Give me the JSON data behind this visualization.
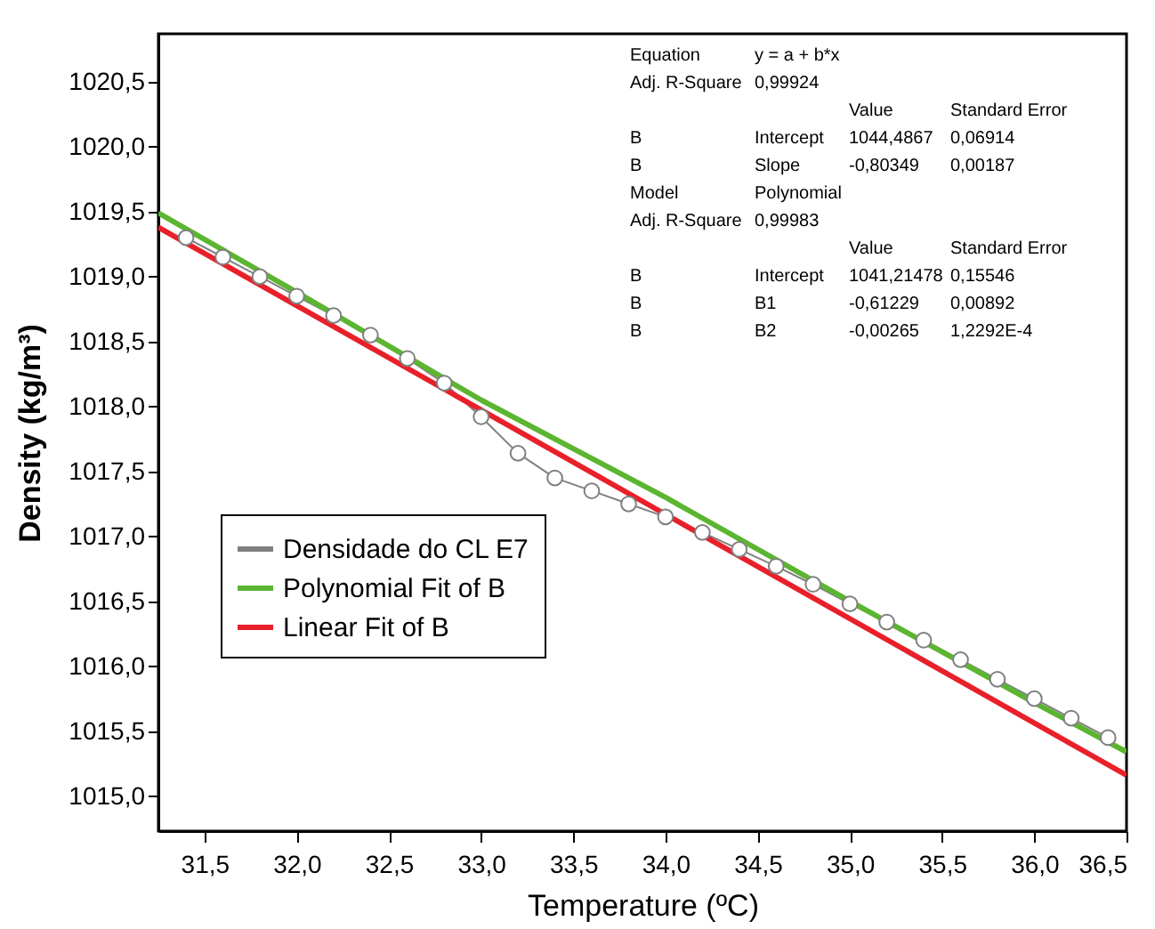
{
  "chart_data": {
    "type": "line",
    "xlabel": "Temperature (ºC)",
    "ylabel": "Density (kg/m³)",
    "xlim": [
      31.25,
      36.5
    ],
    "xticks": [
      {
        "value": 31.5,
        "label": "31,5"
      },
      {
        "value": 32.0,
        "label": "32,0"
      },
      {
        "value": 32.5,
        "label": "32,5"
      },
      {
        "value": 33.0,
        "label": "33,0"
      },
      {
        "value": 33.5,
        "label": "33,5"
      },
      {
        "value": 34.0,
        "label": "34,0"
      },
      {
        "value": 34.5,
        "label": "34,5"
      },
      {
        "value": 35.0,
        "label": "35,0"
      },
      {
        "value": 35.5,
        "label": "35,5"
      },
      {
        "value": 36.0,
        "label": "36,0"
      },
      {
        "value": 36.5,
        "label": "36,5"
      }
    ],
    "ylim": [
      1014.73,
      1020.87
    ],
    "yticks": [
      {
        "value": 1015.0,
        "label": "1015,0"
      },
      {
        "value": 1015.5,
        "label": "1015,5"
      },
      {
        "value": 1016.0,
        "label": "1016,0"
      },
      {
        "value": 1016.5,
        "label": "1016,5"
      },
      {
        "value": 1017.0,
        "label": "1017,0"
      },
      {
        "value": 1017.5,
        "label": "1017,5"
      },
      {
        "value": 1018.0,
        "label": "1018,0"
      },
      {
        "value": 1018.5,
        "label": "1018,5"
      },
      {
        "value": 1019.0,
        "label": "1019,0"
      },
      {
        "value": 1019.5,
        "label": "1019,5"
      },
      {
        "value": 1020.0,
        "label": "1020,0"
      },
      {
        "value": 1020.5,
        "label": "1020,5"
      }
    ],
    "grid": false,
    "legend": "bottom left",
    "series": [
      {
        "name": "Densidade do CL E7",
        "color": "#808080",
        "marker": "circle",
        "line_style": "solid",
        "x": [
          31.4,
          31.6,
          31.8,
          32.0,
          32.2,
          32.4,
          32.6,
          32.8,
          33.0,
          33.2,
          33.4,
          33.6,
          33.8,
          34.0,
          34.2,
          34.4,
          34.6,
          34.8,
          35.0,
          35.2,
          35.4,
          35.6,
          35.8,
          36.0,
          36.2,
          36.4
        ],
        "values": [
          1019.3,
          1019.15,
          1019.0,
          1018.85,
          1018.7,
          1018.55,
          1018.37,
          1018.18,
          1017.92,
          1017.64,
          1017.45,
          1017.35,
          1017.25,
          1017.15,
          1017.03,
          1016.9,
          1016.77,
          1016.63,
          1016.48,
          1016.34,
          1016.2,
          1016.05,
          1015.9,
          1015.75,
          1015.6,
          1015.45
        ]
      },
      {
        "name": "Polynomial Fit of B",
        "color": "#5cb531",
        "marker": "none",
        "line_style": "solid",
        "x": [
          31.25,
          32.0,
          33.0,
          34.0,
          35.0,
          36.0,
          36.5
        ],
        "values": [
          1019.49,
          1018.88,
          1018.05,
          1017.3,
          1016.5,
          1015.72,
          1015.34
        ]
      },
      {
        "name": "Linear Fit of B",
        "color": "#e8202a",
        "marker": "none",
        "line_style": "solid",
        "x": [
          31.25,
          36.5
        ],
        "values": [
          1019.38,
          1015.16
        ]
      }
    ],
    "annotations": [
      "Equation\ty = a + b*x\t\t",
      "Adj. R-Square\t0,99924\t\t",
      "\t\tValue\tStandard Error",
      "B\tIntercept\t1044,4867\t0,06914",
      "B\tSlope\t-0,80349\t0,00187",
      "Model\tPolynomial\t\t",
      "Adj. R-Square\t0,99983\t\t",
      "\t\tValue\tStandard Error",
      "B\tIntercept\t1041,21478\t0,15546",
      "B\tB1\t-0,61229\t0,00892",
      "B\tB2\t-0,00265\t1,2292E-4"
    ]
  }
}
